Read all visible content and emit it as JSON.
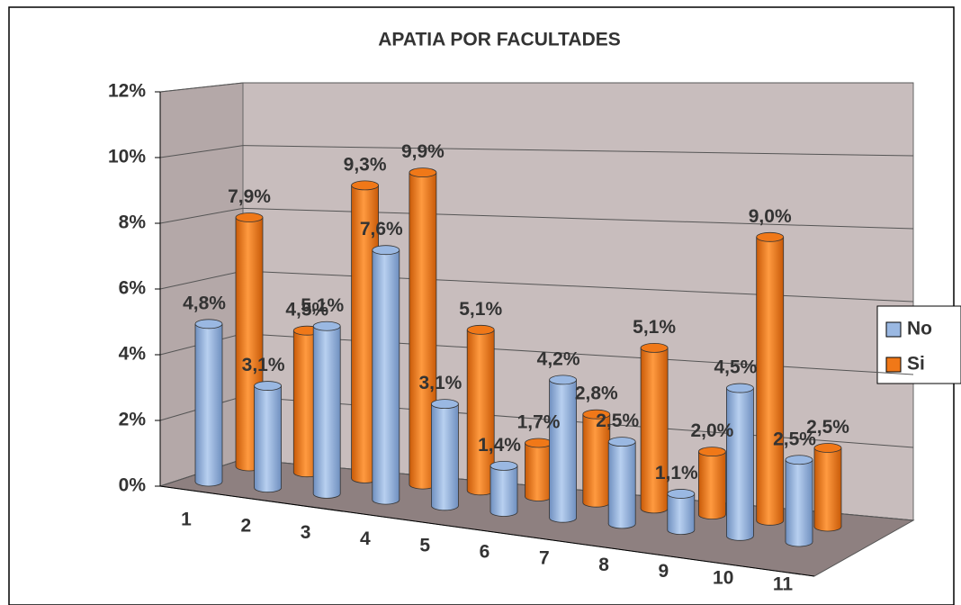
{
  "chart_data": {
    "type": "bar3d",
    "title": "APATIA POR FACULTADES",
    "categories": [
      "1",
      "2",
      "3",
      "4",
      "5",
      "6",
      "7",
      "8",
      "9",
      "10",
      "11"
    ],
    "series": [
      {
        "name": "No",
        "color": "#9ab8e2",
        "values": [
          4.8,
          3.1,
          5.1,
          7.6,
          3.1,
          1.4,
          4.2,
          2.5,
          1.1,
          4.5,
          2.5
        ],
        "value_labels": [
          "4,8%",
          "3,1%",
          "5,1%",
          "7,6%",
          "3,1%",
          "1,4%",
          "4,2%",
          "2,5%",
          "1,1%",
          "4,5%",
          "2,5%"
        ]
      },
      {
        "name": "Si",
        "color": "#f07818",
        "values": [
          7.9,
          4.5,
          9.3,
          9.9,
          5.1,
          1.7,
          2.8,
          5.1,
          2.0,
          9.0,
          2.5
        ],
        "value_labels": [
          "7,9%",
          "4,5%",
          "9,3%",
          "9,9%",
          "5,1%",
          "1,7%",
          "2,8%",
          "5,1%",
          "2,0%",
          "9,0%",
          "2,5%"
        ]
      }
    ],
    "ylim": [
      0,
      12
    ],
    "yticks": [
      {
        "value": 0,
        "label": "0%"
      },
      {
        "value": 2,
        "label": "2%"
      },
      {
        "value": 4,
        "label": "4%"
      },
      {
        "value": 6,
        "label": "6%"
      },
      {
        "value": 8,
        "label": "8%"
      },
      {
        "value": 10,
        "label": "10%"
      },
      {
        "value": 12,
        "label": "12%"
      }
    ],
    "grid": true,
    "legend": "right"
  }
}
